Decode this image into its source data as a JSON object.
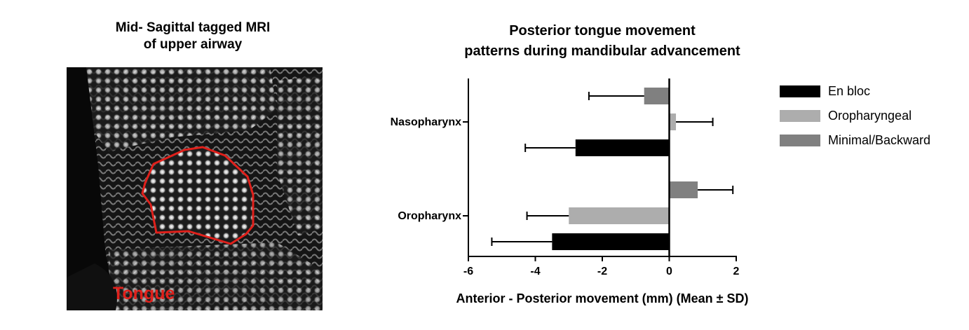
{
  "mri": {
    "title_line1": "Mid- Sagittal tagged MRI",
    "title_line2": "of upper airway",
    "tongue_label": "Tongue",
    "outline_color": "#e0201b"
  },
  "chart_data": {
    "type": "bar",
    "orientation": "horizontal",
    "title_line1": "Posterior tongue movement",
    "title_line2": "patterns during mandibular advancement",
    "xlabel": "Anterior - Posterior movement (mm) (Mean ± SD)",
    "ylabel": "",
    "xlim": [
      -6,
      2
    ],
    "xticks": [
      "-6",
      "-4",
      "-2",
      "0",
      "2"
    ],
    "categories": [
      "Nasopharynx",
      "Oropharynx"
    ],
    "legend_position": "right",
    "grid": false,
    "series": [
      {
        "name": "En bloc",
        "color": "#000000",
        "values": [
          -2.8,
          -3.5
        ],
        "sd": [
          1.5,
          1.8
        ]
      },
      {
        "name": "Oropharyngeal",
        "color": "#adadad",
        "values": [
          0.2,
          -3.0
        ],
        "sd": [
          1.1,
          1.25
        ]
      },
      {
        "name": "Minimal/Backward",
        "color": "#808080",
        "values": [
          -0.75,
          0.85
        ],
        "sd": [
          1.65,
          1.05
        ]
      }
    ]
  }
}
